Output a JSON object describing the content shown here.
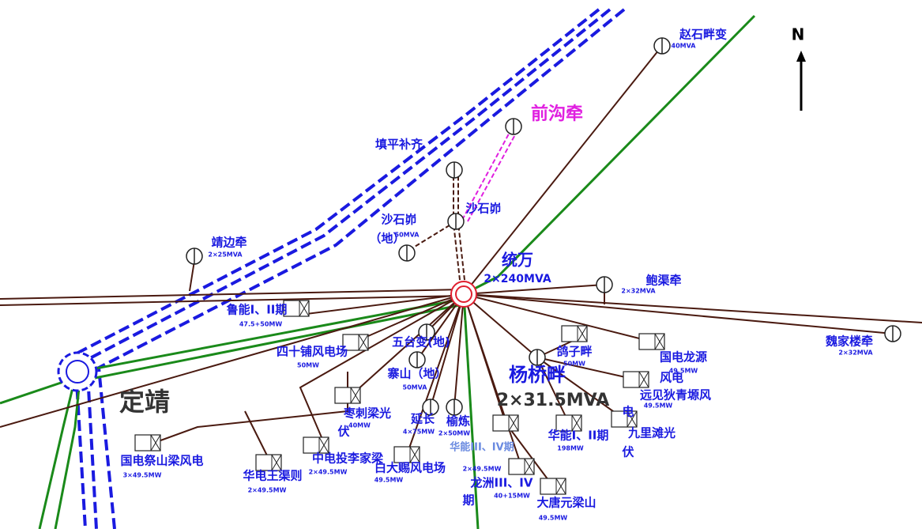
{
  "labels": [
    "N",
    "赵石畔变",
    "40MVA",
    "前沟牵",
    "填平补齐",
    "沙石峁",
    "沙石峁",
    "（地）",
    "50MVA",
    "靖边牵",
    "2×25MVA",
    "统万",
    "2×240MVA",
    "鲍渠牵",
    "2×32MVA",
    "魏家楼牵",
    "2×32MVA",
    "鲁能I、II期",
    "47.5+50MW",
    "四十铺风电场",
    "50MW",
    "五台变(地)",
    "寨山（地）",
    "50MVA",
    "杨桥畔",
    "2×31.5MVA",
    "鸽子畔",
    "50MW",
    "国电龙源",
    "49.5MW",
    "风电",
    "远见狄青塬风",
    "49.5MW",
    "电",
    "九里滩光",
    "伏",
    "定靖",
    "枣刺梁光",
    "40MW",
    "伏",
    "延长",
    "4×75MW",
    "榆炼",
    "2×50MW",
    "华能I、II期",
    "198MW",
    "华能III、IV期",
    "国电祭山梁风电",
    "3×49.5MW",
    "中电投李家梁",
    "2×49.5MW",
    "白大赐风电场",
    "49.5MW",
    "华电王渠则",
    "2×49.5MW",
    "2×49.5MW",
    "龙洲III、IV",
    "40+15MW",
    "期",
    "大唐元梁山",
    "49.5MW"
  ]
}
